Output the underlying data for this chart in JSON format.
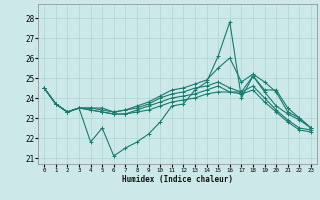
{
  "xlabel": "Humidex (Indice chaleur)",
  "xlim": [
    -0.5,
    23.5
  ],
  "ylim": [
    20.7,
    28.7
  ],
  "yticks": [
    21,
    22,
    23,
    24,
    25,
    26,
    27,
    28
  ],
  "xticks": [
    0,
    1,
    2,
    3,
    4,
    5,
    6,
    7,
    8,
    9,
    10,
    11,
    12,
    13,
    14,
    15,
    16,
    17,
    18,
    19,
    20,
    21,
    22,
    23
  ],
  "background_color": "#cce8e8",
  "grid_color": "#aad4d4",
  "line_color": "#1a7a6e",
  "series": [
    [
      24.5,
      23.7,
      23.3,
      23.5,
      21.8,
      22.5,
      21.1,
      21.5,
      21.8,
      22.2,
      22.8,
      23.6,
      23.7,
      24.4,
      24.8,
      26.1,
      27.8,
      24.0,
      25.1,
      24.4,
      24.4,
      23.5,
      23.0,
      22.5
    ],
    [
      24.5,
      23.7,
      23.3,
      23.5,
      23.5,
      23.4,
      23.3,
      23.4,
      23.6,
      23.8,
      24.1,
      24.4,
      24.5,
      24.7,
      24.9,
      25.5,
      26.0,
      24.8,
      25.2,
      24.8,
      24.3,
      23.3,
      23.0,
      22.5
    ],
    [
      24.5,
      23.7,
      23.3,
      23.5,
      23.5,
      23.5,
      23.3,
      23.4,
      23.5,
      23.7,
      24.0,
      24.2,
      24.3,
      24.5,
      24.6,
      24.8,
      24.5,
      24.3,
      25.1,
      24.3,
      23.6,
      23.2,
      22.9,
      22.5
    ],
    [
      24.5,
      23.7,
      23.3,
      23.5,
      23.4,
      23.3,
      23.2,
      23.2,
      23.4,
      23.6,
      23.8,
      24.0,
      24.1,
      24.2,
      24.4,
      24.6,
      24.3,
      24.3,
      24.6,
      24.0,
      23.4,
      22.9,
      22.5,
      22.4
    ],
    [
      24.5,
      23.7,
      23.3,
      23.5,
      23.4,
      23.3,
      23.2,
      23.2,
      23.3,
      23.4,
      23.6,
      23.8,
      23.9,
      24.0,
      24.2,
      24.3,
      24.3,
      24.2,
      24.4,
      23.8,
      23.3,
      22.8,
      22.4,
      22.3
    ]
  ]
}
